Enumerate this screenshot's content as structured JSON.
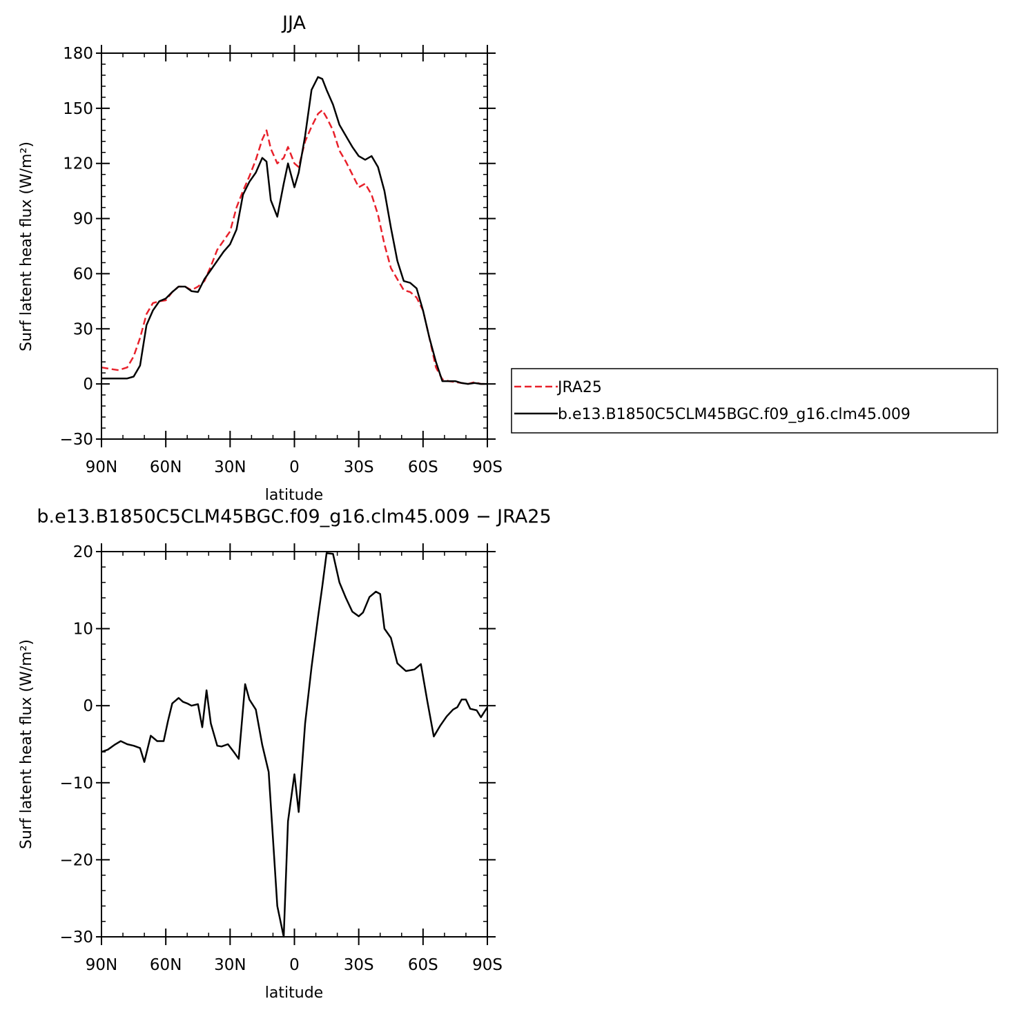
{
  "chart_data": [
    {
      "type": "line",
      "title": "JJA",
      "xlabel": "latitude",
      "ylabel": "Surf latent heat flux (W/m²)",
      "xlim": [
        90,
        -90
      ],
      "ylim": [
        -30,
        180
      ],
      "xticks": [
        90,
        60,
        30,
        0,
        -30,
        -60,
        -90
      ],
      "xtick_labels": [
        "90N",
        "60N",
        "30N",
        "0",
        "30S",
        "60S",
        "90S"
      ],
      "yticks": [
        180,
        150,
        120,
        90,
        60,
        30,
        0,
        -30
      ],
      "ytick_labels": [
        "180",
        "150",
        "120",
        "90",
        "60",
        "30",
        "0",
        "−30"
      ],
      "legend": {
        "placement": "right"
      },
      "series": [
        {
          "name": "JRA25",
          "color": "#e8202a",
          "dash": true,
          "x": [
            90,
            85,
            82,
            78,
            75,
            72,
            69,
            66,
            63,
            60,
            57,
            54,
            51,
            48,
            45,
            42,
            39,
            36,
            33,
            30,
            27,
            24,
            21,
            18,
            15,
            13,
            11,
            8,
            5,
            3,
            0,
            -2,
            -5,
            -8,
            -11,
            -13,
            -15,
            -18,
            -21,
            -24,
            -27,
            -30,
            -33,
            -36,
            -39,
            -42,
            -45,
            -48,
            -51,
            -54,
            -57,
            -60,
            -63,
            -66,
            -69,
            -72,
            -75,
            -78,
            -81,
            -84,
            -87,
            -90
          ],
          "y": [
            9,
            8,
            7.5,
            9,
            15,
            25,
            38,
            44,
            45,
            45.5,
            50,
            53,
            53,
            51,
            53,
            56,
            64,
            73,
            78,
            83,
            96,
            105,
            113,
            122,
            133,
            138,
            128,
            120,
            123,
            129,
            120,
            118,
            132,
            140,
            147,
            149,
            145,
            138,
            127,
            121,
            114,
            107,
            109,
            103,
            92,
            76,
            63,
            57,
            51,
            50,
            47,
            40,
            25,
            9,
            2.5,
            1.5,
            1,
            0.5,
            0,
            1,
            0,
            0
          ]
        },
        {
          "name": "b.e13.B1850C5CLM45BGC.f09_g16.clm45.009",
          "color": "#000000",
          "dash": false,
          "x": [
            90,
            85,
            82,
            78,
            75,
            72,
            69,
            66,
            63,
            60,
            57,
            54,
            51,
            48,
            45,
            42,
            39,
            36,
            33,
            30,
            27,
            24,
            21,
            18,
            15,
            13,
            11,
            8,
            5,
            3,
            0,
            -2,
            -5,
            -8,
            -11,
            -13,
            -15,
            -18,
            -21,
            -24,
            -27,
            -30,
            -33,
            -36,
            -39,
            -42,
            -45,
            -48,
            -51,
            -54,
            -57,
            -60,
            -63,
            -66,
            -69,
            -72,
            -75,
            -78,
            -81,
            -84,
            -87,
            -90
          ],
          "y": [
            3,
            3,
            3,
            3,
            4,
            10,
            32,
            40,
            45,
            46.5,
            50,
            53,
            53,
            50.5,
            50,
            57,
            62,
            67,
            72,
            76,
            84,
            103,
            110,
            115,
            123,
            121,
            100,
            91,
            109,
            120,
            107,
            115,
            135,
            160,
            167,
            166,
            160,
            152,
            141,
            135,
            129,
            124,
            122,
            124,
            118,
            105,
            85,
            67,
            56,
            55,
            52,
            40,
            25,
            12,
            1.5,
            1.5,
            1.5,
            0.5,
            0,
            0.5,
            0,
            0
          ]
        }
      ]
    },
    {
      "type": "line",
      "title": "b.e13.B1850C5CLM45BGC.f09_g16.clm45.009 − JRA25",
      "xlabel": "latitude",
      "ylabel": "Surf latent heat flux (W/m²)",
      "xlim": [
        90,
        -90
      ],
      "ylim": [
        -30,
        20
      ],
      "xticks": [
        90,
        60,
        30,
        0,
        -30,
        -60,
        -90
      ],
      "xtick_labels": [
        "90N",
        "60N",
        "30N",
        "0",
        "30S",
        "60S",
        "90S"
      ],
      "yticks": [
        20,
        10,
        0,
        -10,
        -20,
        -30
      ],
      "ytick_labels": [
        "20",
        "10",
        "0",
        "−10",
        "−20",
        "−30"
      ],
      "series": [
        {
          "name": "",
          "color": "#000000",
          "dash": false,
          "x": [
            90,
            87,
            84,
            81,
            78,
            75,
            72,
            70,
            67,
            64,
            61,
            59,
            57,
            54,
            52,
            50,
            48,
            45,
            43,
            41,
            39,
            36,
            34,
            31,
            28,
            26,
            23,
            21,
            18,
            15,
            12,
            10,
            8,
            5,
            3,
            0,
            -2,
            -5,
            -8,
            -11,
            -13,
            -15,
            -18,
            -21,
            -24,
            -27,
            -30,
            -32,
            -35,
            -38,
            -40,
            -42,
            -45,
            -48,
            -52,
            -54,
            -56,
            -59,
            -62,
            -65,
            -68,
            -71,
            -74,
            -76,
            -78,
            -80,
            -82,
            -85,
            -87,
            -90
          ],
          "y": [
            -6,
            -5.7,
            -5.1,
            -4.6,
            -5,
            -5.2,
            -5.5,
            -7.3,
            -3.9,
            -4.6,
            -4.6,
            -2,
            0.3,
            1,
            0.5,
            0.3,
            0,
            0.2,
            -2.8,
            2,
            -2.3,
            -5.2,
            -5.3,
            -5,
            -6.1,
            -6.9,
            2.8,
            0.8,
            -0.5,
            -5.1,
            -8.6,
            -17.2,
            -26,
            -30,
            -15,
            -8.9,
            -13.8,
            -2.3,
            5,
            11.5,
            15.5,
            19.8,
            19.7,
            16,
            14,
            12.2,
            11.6,
            12.1,
            14.1,
            14.8,
            14.5,
            10,
            8.8,
            5.5,
            4.5,
            4.6,
            4.7,
            5.4,
            0.6,
            -4,
            -2.6,
            -1.4,
            -0.5,
            -0.2,
            0.8,
            0.8,
            -0.4,
            -0.6,
            -1.5,
            -0.2
          ]
        }
      ]
    }
  ]
}
